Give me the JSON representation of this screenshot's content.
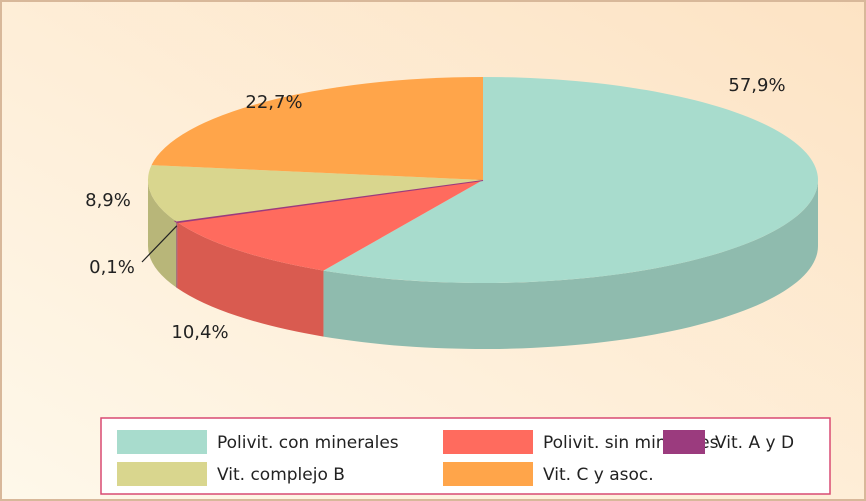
{
  "chart_data": {
    "type": "pie3d",
    "categories": [
      "Polivit. con minerales",
      "Polivit. sin minerales",
      "Vit. A y D",
      "Vit. complejo B",
      "Vit. C y asoc."
    ],
    "values": [
      57.9,
      10.4,
      0.1,
      8.9,
      22.7
    ],
    "value_labels": [
      "57,9%",
      "10,4%",
      "0,1%",
      "8,9%",
      "22,7%"
    ],
    "colors": [
      "#a8dccd",
      "#ff6b5e",
      "#9b3b7e",
      "#d9d68e",
      "#ffa54a"
    ]
  }
}
